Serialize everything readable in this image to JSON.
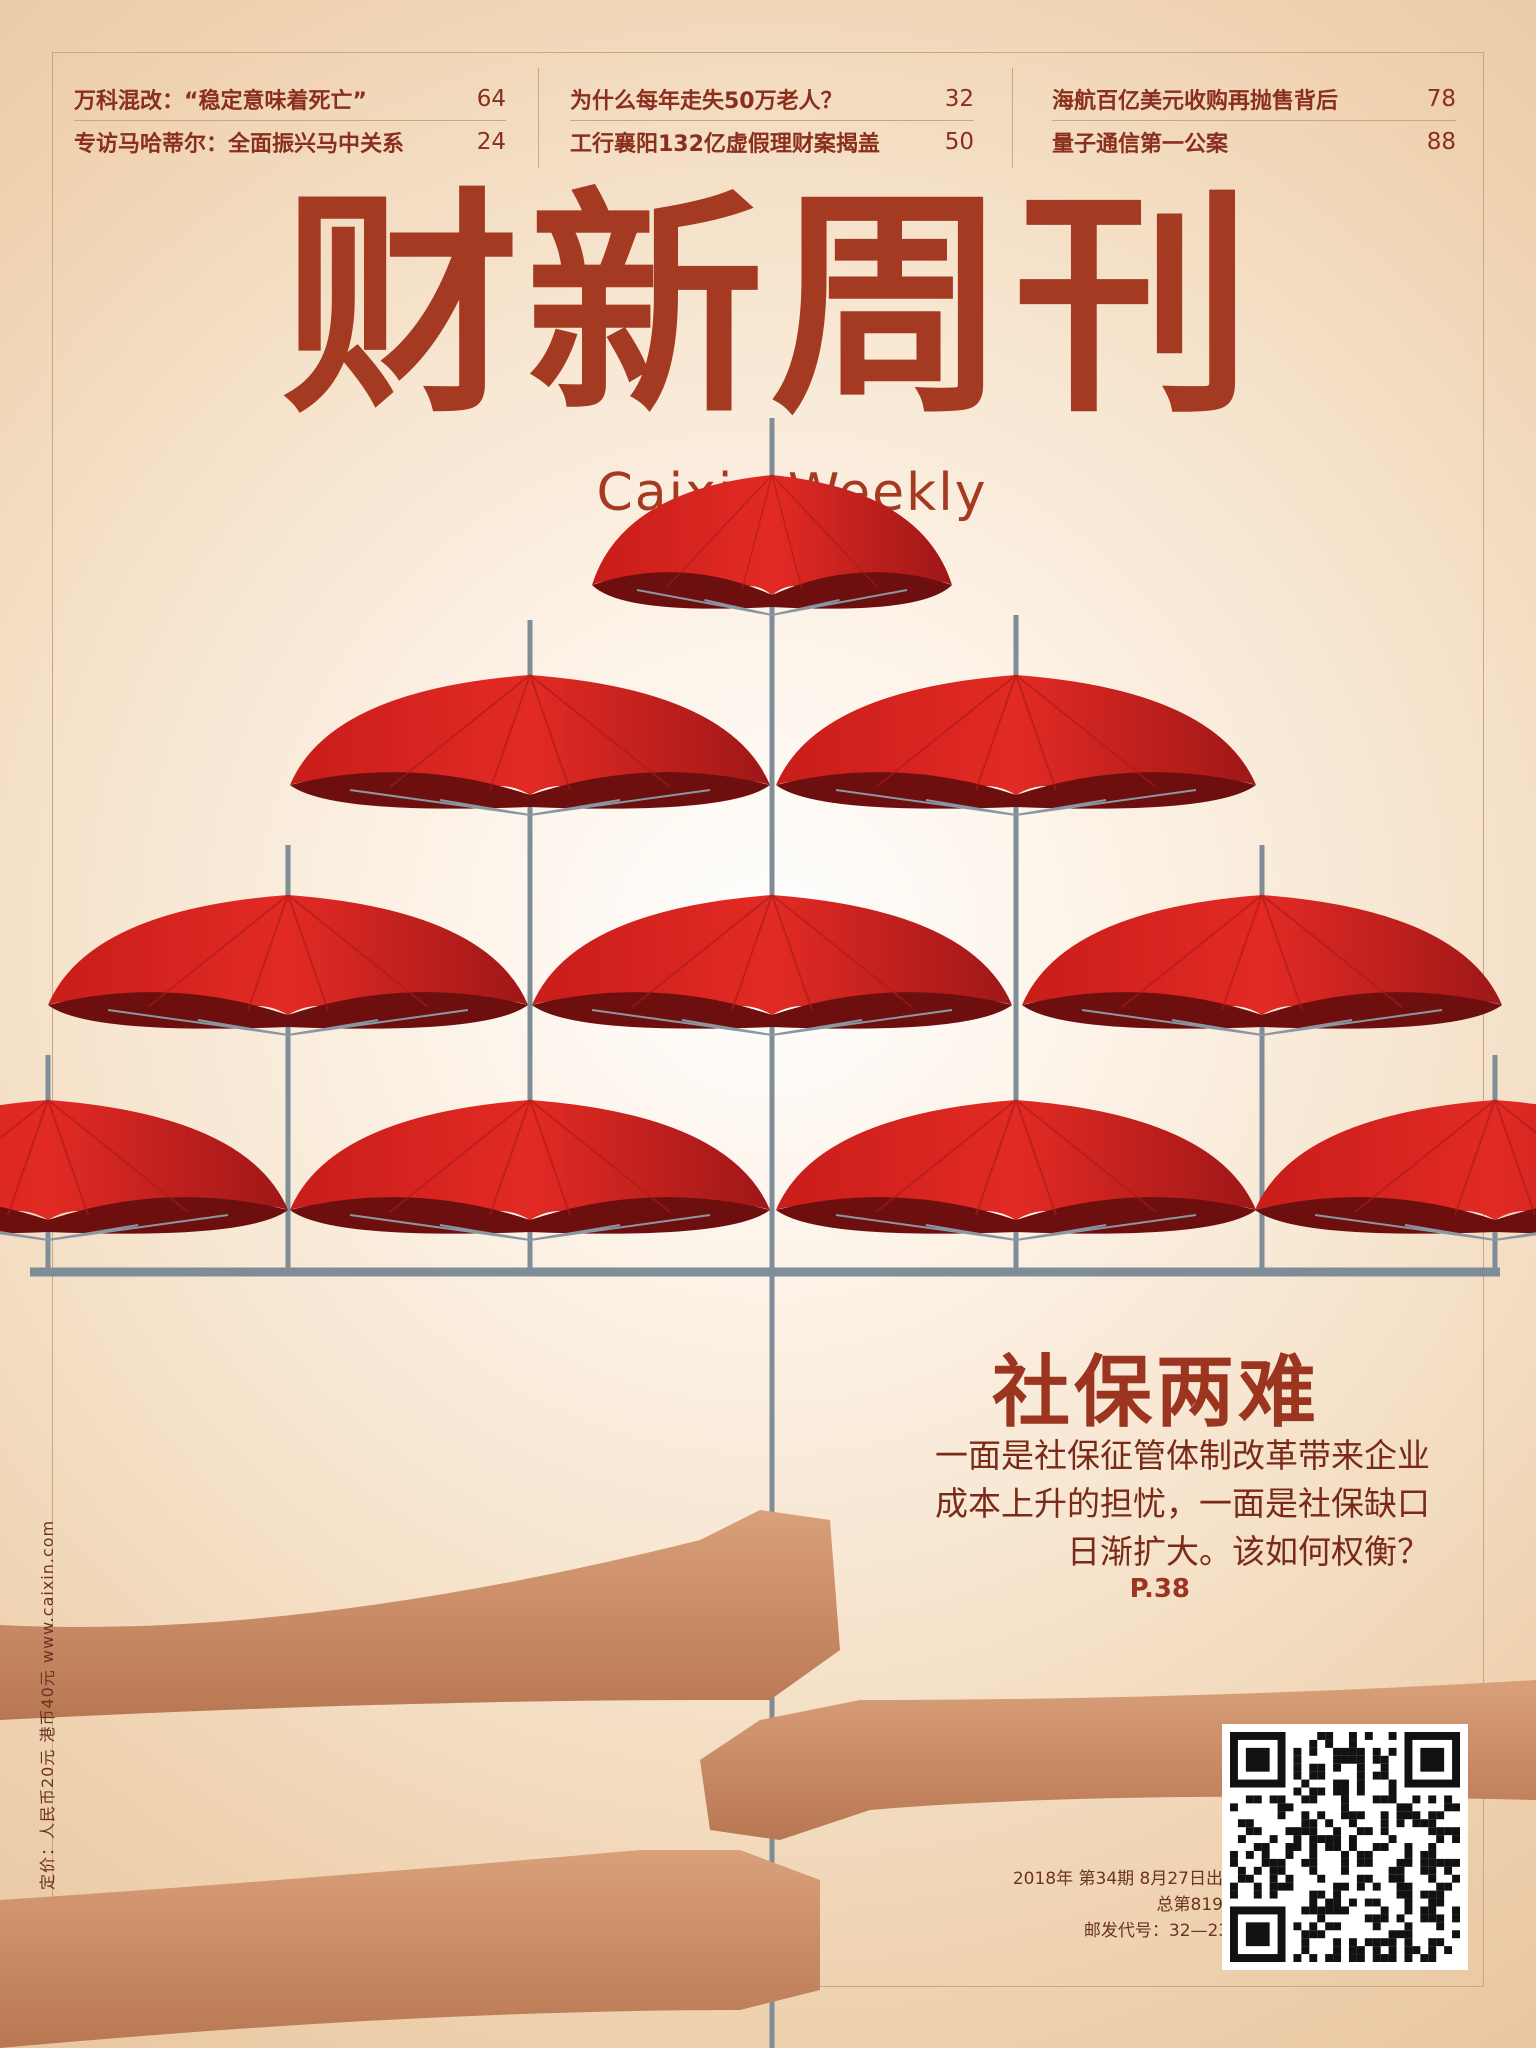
{
  "headlines": {
    "col1": [
      {
        "title": "万科混改：“稳定意味着死亡”",
        "page": "64"
      },
      {
        "title": "专访马哈蒂尔：全面振兴马中关系",
        "page": "24"
      }
    ],
    "col2": [
      {
        "title": "为什么每年走失50万老人？",
        "page": "32"
      },
      {
        "title": "工行襄阳132亿虚假理财案揭盖",
        "page": "50"
      }
    ],
    "col3": [
      {
        "title": "海航百亿美元收购再抛售背后",
        "page": "78"
      },
      {
        "title": "量子通信第一公案",
        "page": "88"
      }
    ]
  },
  "masthead": "财新周刊",
  "masthead_en": "Caixin Weekly",
  "cover_story": {
    "title": "社保两难",
    "lines": [
      "一面是社保征管体制改革带来企业",
      "成本上升的担忧，一面是社保缺口",
      "日渐扩大。该如何权衡？"
    ],
    "page": "P.38"
  },
  "issue": {
    "line1": "2018年 第34期 8月27日出版",
    "line2": "总第819期",
    "line3": "邮发代号：32—235"
  },
  "side_text": "定价：人民币20元 港币40元   www.caixin.com",
  "colors": {
    "brand_red": "#a53a22",
    "umbrella_red": "#d8241f",
    "umbrella_dark": "#8e1414"
  },
  "art": {
    "description_icons": [
      "umbrella-icon",
      "hand-icon",
      "qr-code"
    ]
  }
}
